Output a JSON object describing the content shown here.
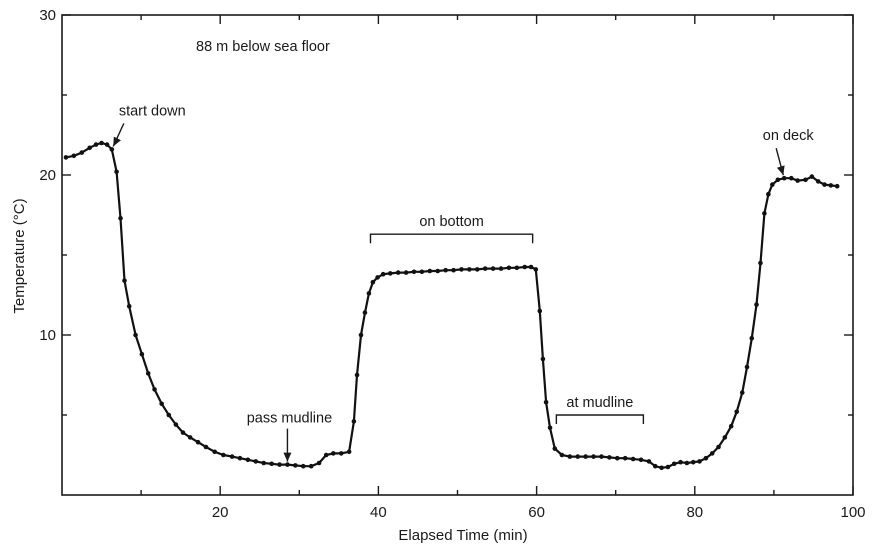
{
  "chart_data": {
    "type": "line",
    "title": "88 m below sea floor",
    "xlabel": "Elapsed Time (min)",
    "ylabel": "Temperature (°C)",
    "xlim": [
      0,
      100
    ],
    "ylim": [
      0,
      30
    ],
    "xticks": [
      20,
      40,
      60,
      80,
      100
    ],
    "xticks_minor": [
      10,
      30,
      50,
      70,
      90
    ],
    "yticks": [
      10,
      20,
      30
    ],
    "yticks_minor": [
      5,
      15,
      25
    ],
    "grid": false,
    "legend": "none",
    "series": [
      {
        "points": [
          [
            0.5,
            21.1
          ],
          [
            1.5,
            21.2
          ],
          [
            2.5,
            21.4
          ],
          [
            3.5,
            21.7
          ],
          [
            4.3,
            21.9
          ],
          [
            5.0,
            22.0
          ],
          [
            5.7,
            21.9
          ],
          [
            6.3,
            21.6
          ],
          [
            6.9,
            20.2
          ],
          [
            7.4,
            17.3
          ],
          [
            7.9,
            13.4
          ],
          [
            8.5,
            11.8
          ],
          [
            9.3,
            10.0
          ],
          [
            10.1,
            8.8
          ],
          [
            10.9,
            7.6
          ],
          [
            11.7,
            6.6
          ],
          [
            12.6,
            5.7
          ],
          [
            13.5,
            5.0
          ],
          [
            14.4,
            4.4
          ],
          [
            15.3,
            3.9
          ],
          [
            16.2,
            3.6
          ],
          [
            17.2,
            3.3
          ],
          [
            18.2,
            3.0
          ],
          [
            19.3,
            2.7
          ],
          [
            20.4,
            2.5
          ],
          [
            21.5,
            2.4
          ],
          [
            22.5,
            2.3
          ],
          [
            23.5,
            2.2
          ],
          [
            24.5,
            2.1
          ],
          [
            25.5,
            2.0
          ],
          [
            26.5,
            1.95
          ],
          [
            27.5,
            1.9
          ],
          [
            28.5,
            1.9
          ],
          [
            29.5,
            1.85
          ],
          [
            30.5,
            1.8
          ],
          [
            31.5,
            1.8
          ],
          [
            32.5,
            2.0
          ],
          [
            33.4,
            2.5
          ],
          [
            34.3,
            2.6
          ],
          [
            35.3,
            2.6
          ],
          [
            36.3,
            2.7
          ],
          [
            36.9,
            4.6
          ],
          [
            37.3,
            7.5
          ],
          [
            37.8,
            10.0
          ],
          [
            38.3,
            11.4
          ],
          [
            38.8,
            12.6
          ],
          [
            39.3,
            13.3
          ],
          [
            39.9,
            13.6
          ],
          [
            40.6,
            13.8
          ],
          [
            41.5,
            13.85
          ],
          [
            42.5,
            13.9
          ],
          [
            43.5,
            13.9
          ],
          [
            44.5,
            13.95
          ],
          [
            45.5,
            13.95
          ],
          [
            46.5,
            14.0
          ],
          [
            47.5,
            14.0
          ],
          [
            48.5,
            14.05
          ],
          [
            49.5,
            14.05
          ],
          [
            50.5,
            14.1
          ],
          [
            51.5,
            14.1
          ],
          [
            52.5,
            14.1
          ],
          [
            53.5,
            14.15
          ],
          [
            54.5,
            14.15
          ],
          [
            55.5,
            14.15
          ],
          [
            56.5,
            14.2
          ],
          [
            57.5,
            14.2
          ],
          [
            58.5,
            14.25
          ],
          [
            59.3,
            14.25
          ],
          [
            59.9,
            14.1
          ],
          [
            60.4,
            11.5
          ],
          [
            60.8,
            8.5
          ],
          [
            61.2,
            5.8
          ],
          [
            61.7,
            4.2
          ],
          [
            62.3,
            2.9
          ],
          [
            63.2,
            2.5
          ],
          [
            64.2,
            2.4
          ],
          [
            65.2,
            2.4
          ],
          [
            66.2,
            2.4
          ],
          [
            67.2,
            2.4
          ],
          [
            68.2,
            2.4
          ],
          [
            69.2,
            2.35
          ],
          [
            70.2,
            2.3
          ],
          [
            71.2,
            2.3
          ],
          [
            72.2,
            2.25
          ],
          [
            73.2,
            2.2
          ],
          [
            74.2,
            2.1
          ],
          [
            75.0,
            1.8
          ],
          [
            75.8,
            1.7
          ],
          [
            76.6,
            1.75
          ],
          [
            77.4,
            1.95
          ],
          [
            78.2,
            2.05
          ],
          [
            79.0,
            2.0
          ],
          [
            79.8,
            2.05
          ],
          [
            80.6,
            2.1
          ],
          [
            81.4,
            2.3
          ],
          [
            82.2,
            2.6
          ],
          [
            83.0,
            3.0
          ],
          [
            83.8,
            3.6
          ],
          [
            84.6,
            4.3
          ],
          [
            85.3,
            5.2
          ],
          [
            86.0,
            6.4
          ],
          [
            86.6,
            8.0
          ],
          [
            87.2,
            9.8
          ],
          [
            87.8,
            11.9
          ],
          [
            88.3,
            14.5
          ],
          [
            88.8,
            17.6
          ],
          [
            89.3,
            18.8
          ],
          [
            89.8,
            19.4
          ],
          [
            90.5,
            19.7
          ],
          [
            91.3,
            19.8
          ],
          [
            92.2,
            19.8
          ],
          [
            93.0,
            19.65
          ],
          [
            94.0,
            19.7
          ],
          [
            94.8,
            19.9
          ],
          [
            95.6,
            19.6
          ],
          [
            96.4,
            19.4
          ],
          [
            97.2,
            19.35
          ],
          [
            98.0,
            19.3
          ]
        ]
      }
    ],
    "annotations": [
      {
        "text": "start down",
        "x": 6.3,
        "y": 21.6,
        "arrow": true
      },
      {
        "text": "pass mudline",
        "x": 28.5,
        "y": 1.9,
        "arrow": true
      },
      {
        "text": "on bottom",
        "bracket": [
          39,
          59.5
        ],
        "y": 16.3
      },
      {
        "text": "at mudline",
        "bracket": [
          62.5,
          73.5
        ],
        "y": 5.0
      },
      {
        "text": "on deck",
        "x": 91.3,
        "y": 19.8,
        "arrow": true
      }
    ]
  }
}
